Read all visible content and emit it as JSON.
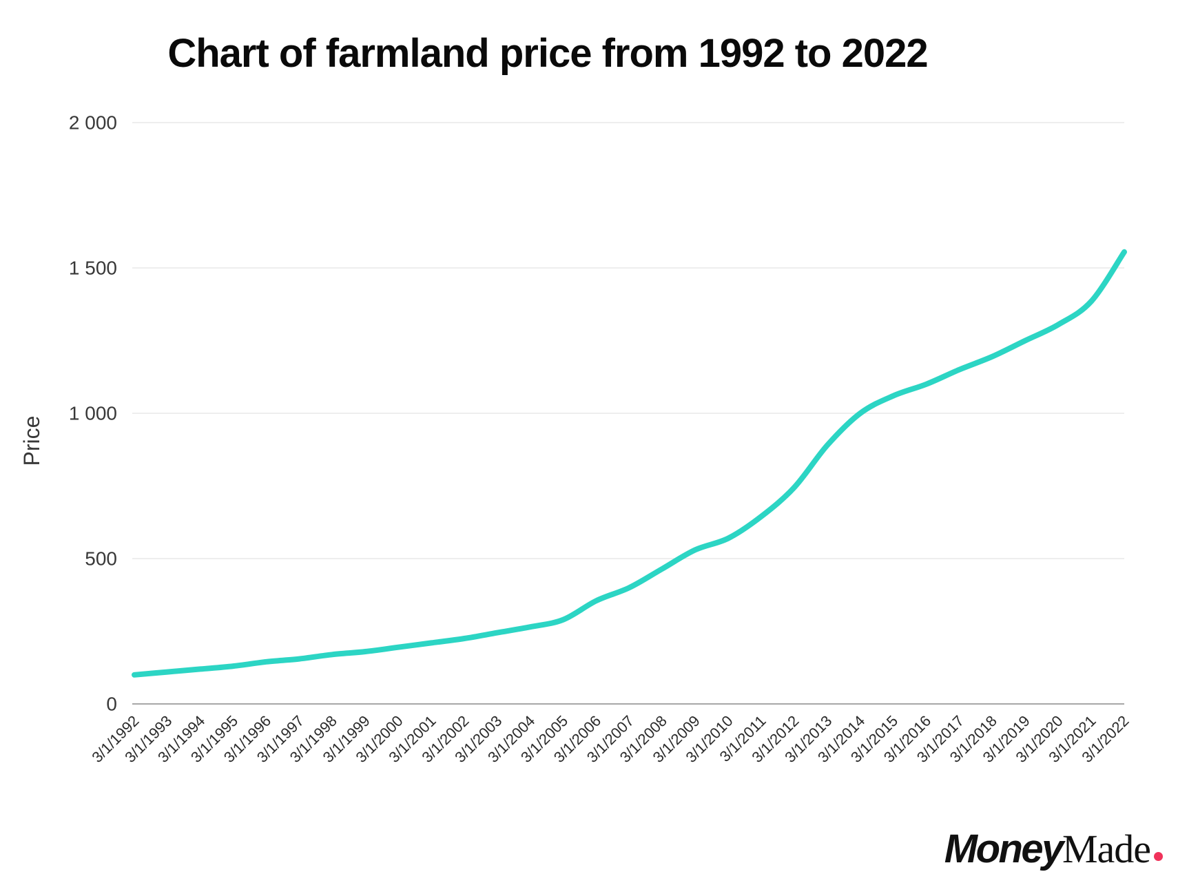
{
  "title": "Chart of farmland price from 1992 to 2022",
  "logo": {
    "bold": "Money",
    "serif": "Made",
    "dot_color": "#f0325a"
  },
  "chart_data": {
    "type": "line",
    "title": "Chart of farmland price from 1992 to 2022",
    "xlabel": "",
    "ylabel": "Price",
    "x": [
      "3/1/1992",
      "3/1/1993",
      "3/1/1994",
      "3/1/1995",
      "3/1/1996",
      "3/1/1997",
      "3/1/1998",
      "3/1/1999",
      "3/1/2000",
      "3/1/2001",
      "3/1/2002",
      "3/1/2003",
      "3/1/2004",
      "3/1/2005",
      "3/1/2006",
      "3/1/2007",
      "3/1/2008",
      "3/1/2009",
      "3/1/2010",
      "3/1/2011",
      "3/1/2012",
      "3/1/2013",
      "3/1/2014",
      "3/1/2015",
      "3/1/2016",
      "3/1/2017",
      "3/1/2018",
      "3/1/2019",
      "3/1/2020",
      "3/1/2021",
      "3/1/2022"
    ],
    "series": [
      {
        "name": "Farmland price",
        "values": [
          100,
          110,
          120,
          130,
          145,
          155,
          170,
          180,
          195,
          210,
          225,
          245,
          265,
          290,
          355,
          400,
          465,
          530,
          570,
          645,
          745,
          890,
          1000,
          1060,
          1100,
          1150,
          1195,
          1250,
          1305,
          1385,
          1555
        ]
      }
    ],
    "ylim": [
      0,
      2000
    ],
    "yticks": {
      "values": [
        0,
        500,
        1000,
        1500,
        2000
      ],
      "labels": [
        "0",
        "500",
        "1 000",
        "1 500",
        "2 000"
      ]
    },
    "grid": true,
    "legend": false,
    "line_color": "#2cd5c4",
    "gridline_color": "#e8e8e8",
    "axis_line_color": "#8a8a8a",
    "tick_text_color": "#383838"
  }
}
